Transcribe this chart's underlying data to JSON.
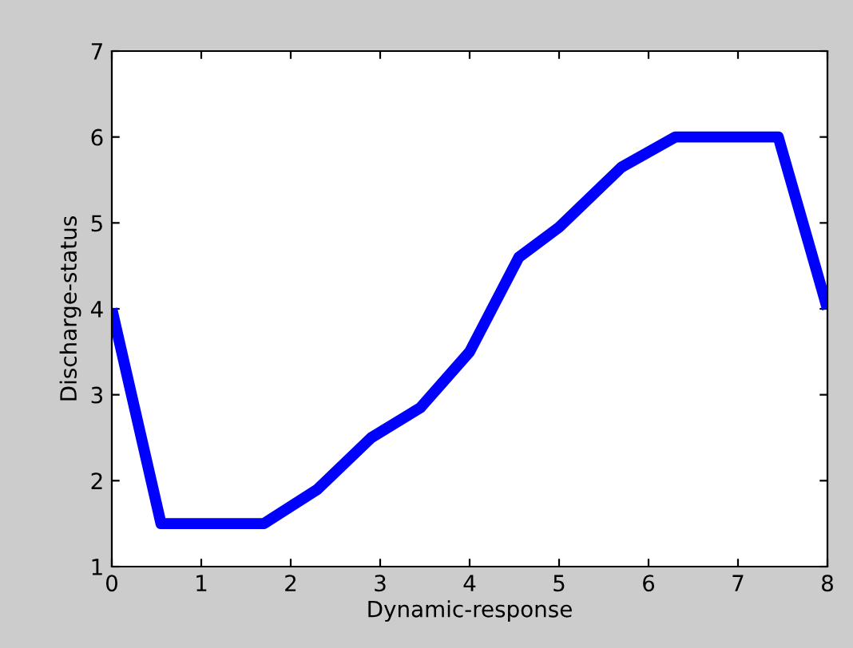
{
  "chart_data": {
    "type": "line",
    "xlabel": "Dynamic-response",
    "ylabel": "Discharge-status",
    "x": [
      0,
      0.55,
      1.7,
      2.0,
      2.3,
      2.9,
      3.45,
      4.0,
      4.55,
      5.0,
      5.7,
      6.3,
      7.45,
      8.0
    ],
    "series": [
      {
        "color": "#0000ff",
        "values": [
          4.0,
          1.5,
          1.5,
          1.7,
          1.9,
          2.5,
          2.85,
          3.5,
          4.6,
          4.95,
          5.65,
          6.0,
          6.0,
          4.0
        ]
      }
    ],
    "xlim": [
      0,
      8
    ],
    "ylim": [
      1,
      7
    ],
    "xticks": [
      0,
      1,
      2,
      3,
      4,
      5,
      6,
      7,
      8
    ],
    "yticks": [
      1,
      2,
      3,
      4,
      5,
      6,
      7
    ],
    "grid": false,
    "legend": false,
    "marker": "none",
    "line_style": "solid"
  }
}
